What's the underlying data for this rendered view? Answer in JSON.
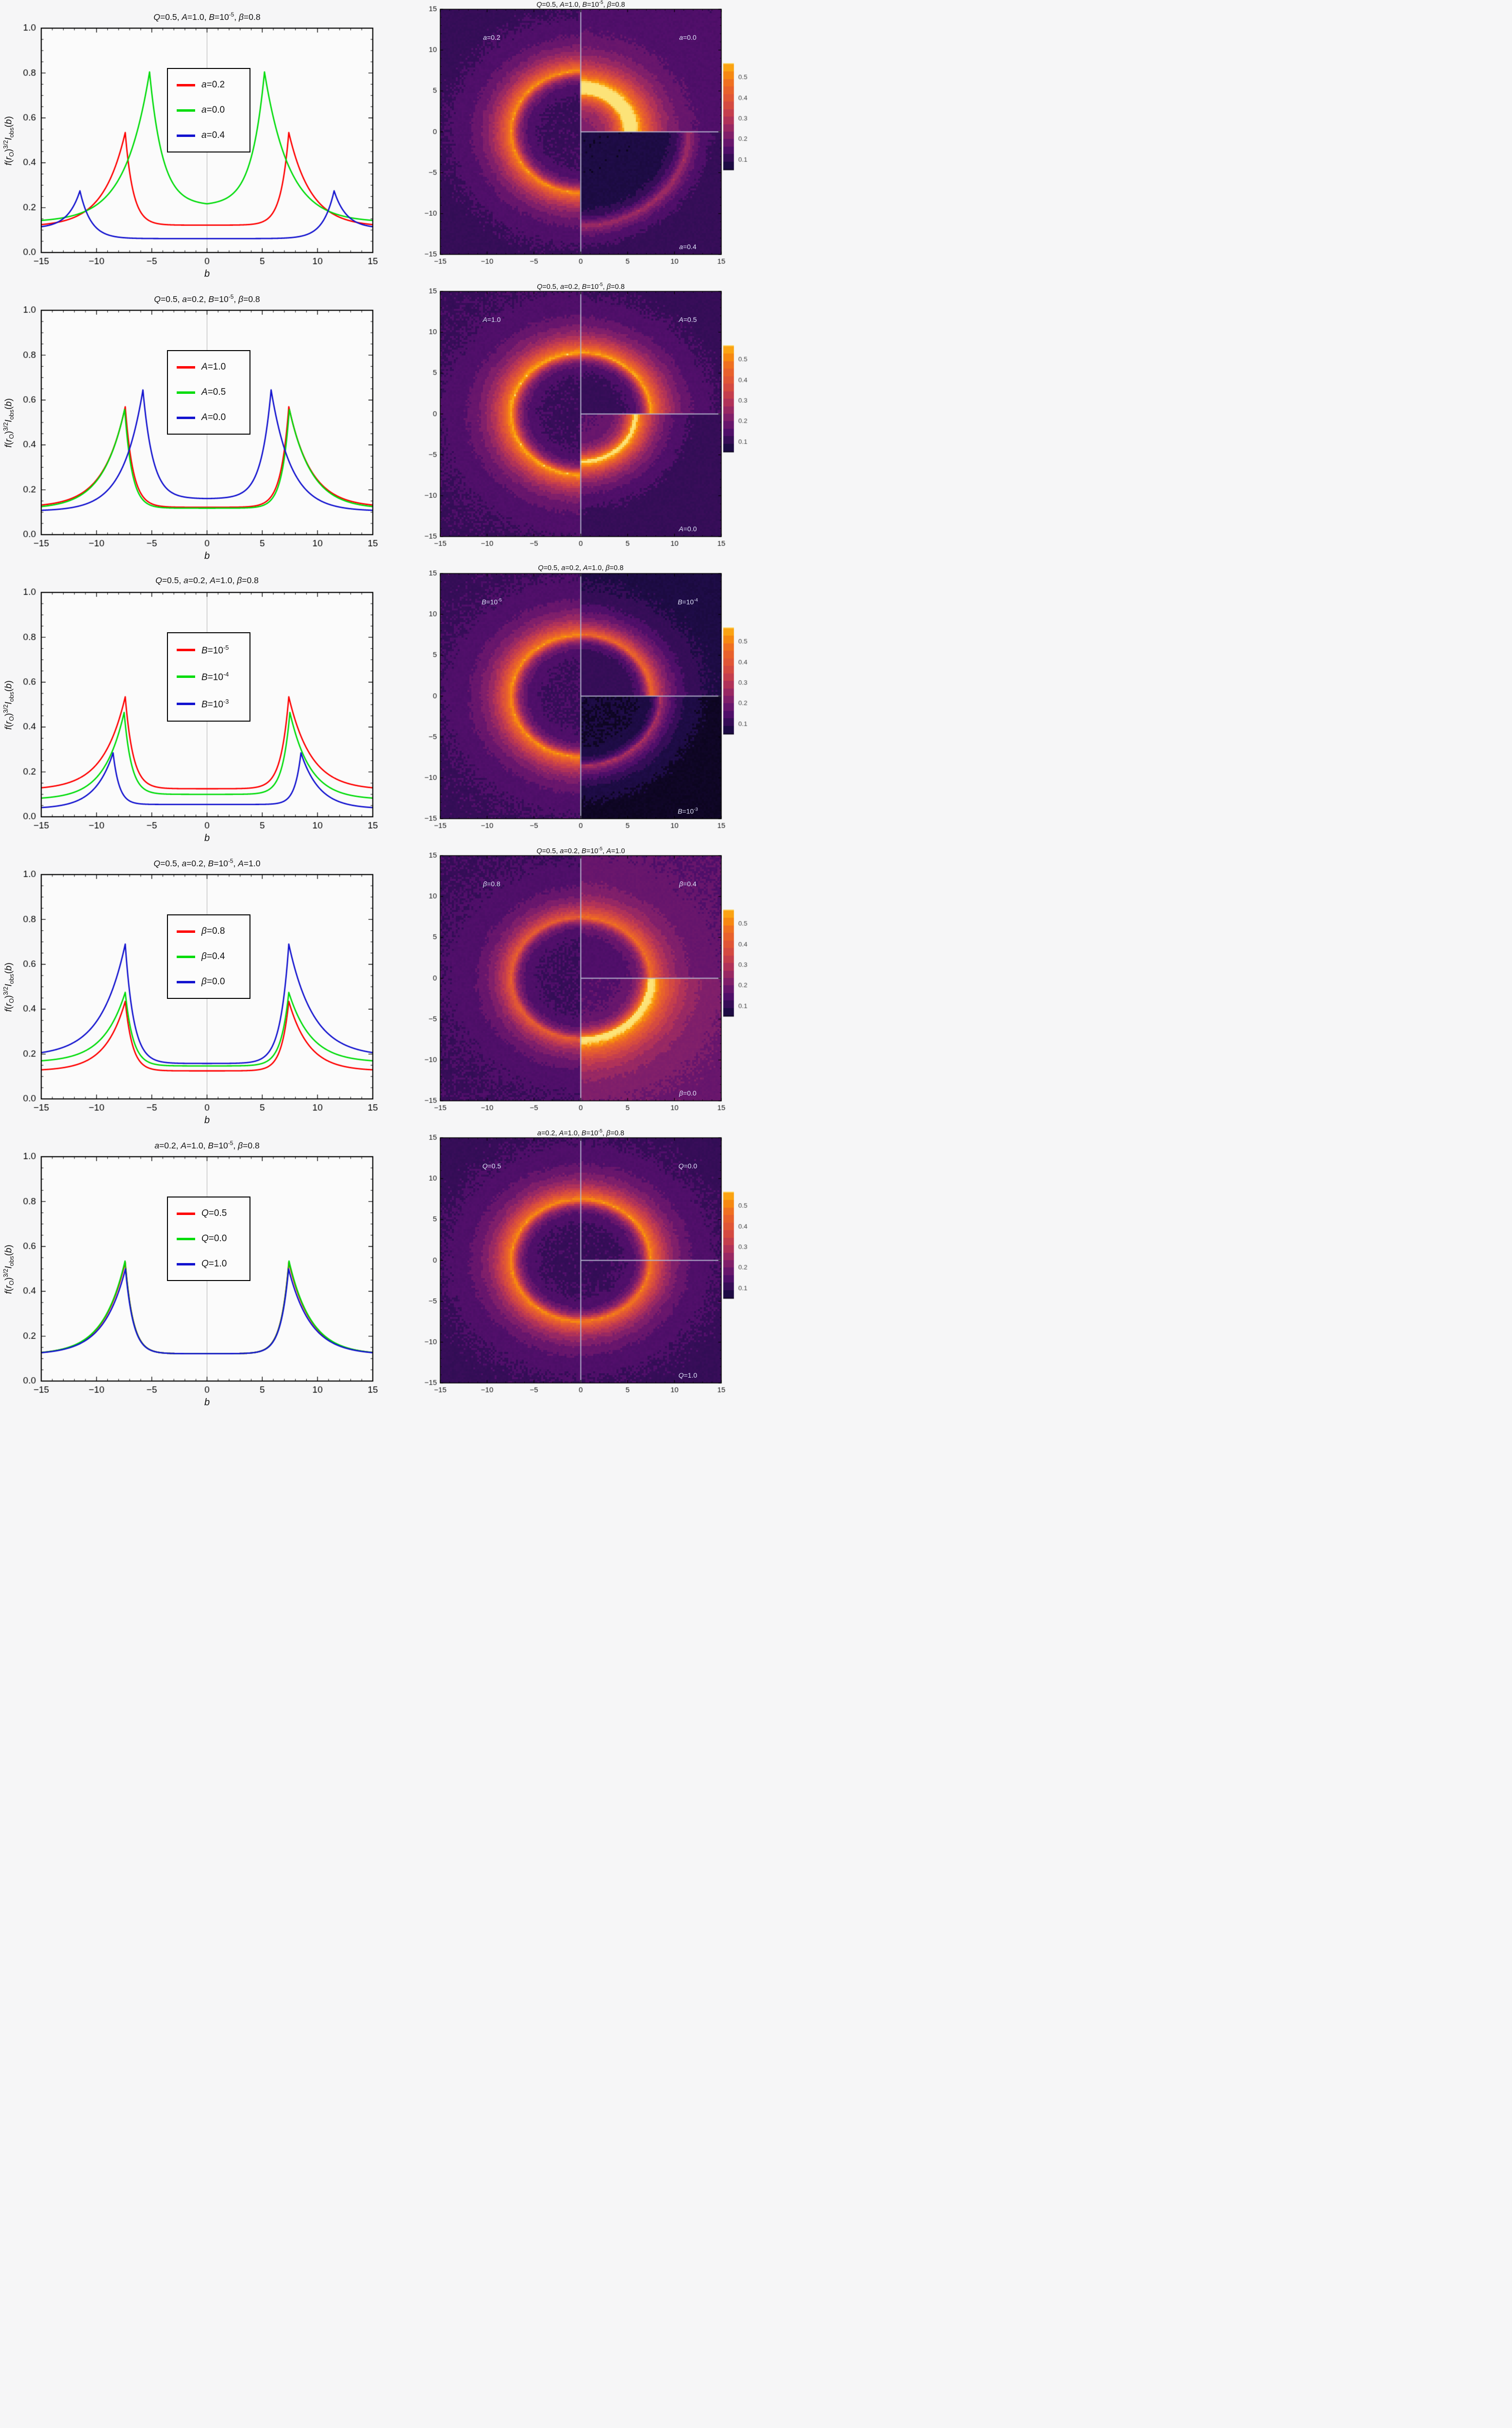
{
  "style": {
    "page_bg": "#f6f6f7",
    "plot_bg": "#fbfbfb",
    "frame_color": "#000000",
    "zero_gridline_color": "#b0b0b0",
    "divider_color": "#b6b6cf",
    "quadrant_label_color": "#dfe2fa",
    "colors": {
      "red": "#fe0000",
      "green": "#00dc0a",
      "blue": "#1313cf"
    },
    "colormap_name": "inferno-like (dark navy to amber)",
    "colormap_stops": [
      [
        0.0,
        "#000004"
      ],
      [
        0.125,
        "#1f0c48"
      ],
      [
        0.25,
        "#550f6d"
      ],
      [
        0.375,
        "#88226a"
      ],
      [
        0.5,
        "#bc3754"
      ],
      [
        0.625,
        "#dd513a"
      ],
      [
        0.75,
        "#ed6925"
      ],
      [
        0.875,
        "#fb9b06"
      ],
      [
        1.0,
        "#fcffa4"
      ]
    ]
  },
  "value_model": "v(r) = center + (peak-center)*exp(-ki*(peak_b - r)) for r <= peak_b ; v(r) = edge + (peak-edge)*exp(-ko*(r - peak_b)) for r > peak_b",
  "chart_data": [
    {
      "line": {
        "type": "line",
        "title": "Q=0.5, A=1.0, B=10^{-5}, β=0.8",
        "xlabel": "b",
        "ylabel": "f(r_{O})^{3/2}I_{obs}(b)",
        "xlim": [
          -15,
          15
        ],
        "ylim": [
          0,
          1
        ],
        "x_ticks": [
          -15,
          -10,
          -5,
          0,
          5,
          10,
          15
        ],
        "y_ticks": [
          0,
          0.2,
          0.4,
          0.6,
          0.8,
          1.0
        ],
        "legend_position": "upper center",
        "legend": [
          {
            "label": "a=0.2",
            "color": "red"
          },
          {
            "label": "a=0.0",
            "color": "green"
          },
          {
            "label": "a=0.4",
            "color": "blue"
          }
        ],
        "series": [
          {
            "name": "a=0.2",
            "color": "red",
            "peak_b": 7.4,
            "peak": 0.535,
            "center": 0.122,
            "edge": 0.115,
            "ki": 1.4,
            "ko": 0.5
          },
          {
            "name": "a=0.0",
            "color": "green",
            "peak_b": 5.2,
            "peak": 0.805,
            "center": 0.21,
            "edge": 0.135,
            "ki": 0.85,
            "ko": 0.45
          },
          {
            "name": "a=0.4",
            "color": "blue",
            "peak_b": 11.5,
            "peak": 0.275,
            "center": 0.062,
            "edge": 0.108,
            "ki": 1.0,
            "ko": 0.9
          }
        ]
      },
      "heatmap": {
        "type": "heatmap",
        "title": "Q=0.5, A=1.0, B=10^{-5}, β=0.8",
        "xlim": [
          -15,
          15
        ],
        "ylim": [
          -15,
          15
        ],
        "ticks": [
          -15,
          -10,
          -5,
          0,
          5,
          10,
          15
        ],
        "quadrants": [
          {
            "region": "left-half",
            "series_index": 0,
            "label": "a=0.2",
            "label_position": "top-left"
          },
          {
            "region": "top-right-quadrant",
            "series_index": 1,
            "label": "a=0.0",
            "label_position": "top-right"
          },
          {
            "region": "bottom-right-quadrant",
            "series_index": 2,
            "label": "a=0.4",
            "label_position": "bottom-right"
          }
        ],
        "colorbar": {
          "vmin": 0.05,
          "vmax": 0.57,
          "ticks": [
            0.1,
            0.2,
            0.3,
            0.4,
            0.5
          ]
        }
      }
    },
    {
      "line": {
        "type": "line",
        "title": "Q=0.5, a=0.2, B=10^{-5}, β=0.8",
        "xlabel": "b",
        "ylabel": "f(r_{O})^{3/2}I_{obs}(b)",
        "xlim": [
          -15,
          15
        ],
        "ylim": [
          0,
          1
        ],
        "x_ticks": [
          -15,
          -10,
          -5,
          0,
          5,
          10,
          15
        ],
        "y_ticks": [
          0,
          0.2,
          0.4,
          0.6,
          0.8,
          1.0
        ],
        "legend_position": "upper center",
        "legend": [
          {
            "label": "A=1.0",
            "color": "red"
          },
          {
            "label": "A=0.5",
            "color": "green"
          },
          {
            "label": "A=0.0",
            "color": "blue"
          }
        ],
        "series": [
          {
            "name": "A=1.0",
            "color": "red",
            "peak_b": 7.4,
            "peak": 0.57,
            "center": 0.122,
            "edge": 0.122,
            "ki": 1.4,
            "ko": 0.5
          },
          {
            "name": "A=0.5",
            "color": "green",
            "peak_b": 7.45,
            "peak": 0.56,
            "center": 0.118,
            "edge": 0.115,
            "ki": 1.5,
            "ko": 0.5
          },
          {
            "name": "A=0.0",
            "color": "blue",
            "peak_b": 5.8,
            "peak": 0.645,
            "center": 0.16,
            "edge": 0.105,
            "ki": 1.1,
            "ko": 0.55
          }
        ]
      },
      "heatmap": {
        "type": "heatmap",
        "title": "Q=0.5, a=0.2, B=10^{-5}, β=0.8",
        "xlim": [
          -15,
          15
        ],
        "ylim": [
          -15,
          15
        ],
        "ticks": [
          -15,
          -10,
          -5,
          0,
          5,
          10,
          15
        ],
        "quadrants": [
          {
            "region": "left-half",
            "series_index": 0,
            "label": "A=1.0",
            "label_position": "top-left"
          },
          {
            "region": "top-right-quadrant",
            "series_index": 1,
            "label": "A=0.5",
            "label_position": "top-right"
          },
          {
            "region": "bottom-right-quadrant",
            "series_index": 2,
            "label": "A=0.0",
            "label_position": "bottom-right"
          }
        ],
        "colorbar": {
          "vmin": 0.05,
          "vmax": 0.57,
          "ticks": [
            0.1,
            0.2,
            0.3,
            0.4,
            0.5
          ]
        }
      }
    },
    {
      "line": {
        "type": "line",
        "title": "Q=0.5, a=0.2, A=1.0, β=0.8",
        "xlabel": "b",
        "ylabel": "f(r_{O})^{3/2}I_{obs}(b)",
        "xlim": [
          -15,
          15
        ],
        "ylim": [
          0,
          1
        ],
        "x_ticks": [
          -15,
          -10,
          -5,
          0,
          5,
          10,
          15
        ],
        "y_ticks": [
          0,
          0.2,
          0.4,
          0.6,
          0.8,
          1.0
        ],
        "legend_position": "upper center",
        "legend": [
          {
            "label": "B=10^{-5}",
            "color": "red"
          },
          {
            "label": "B=10^{-4}",
            "color": "green"
          },
          {
            "label": "B=10^{-3}",
            "color": "blue"
          }
        ],
        "series": [
          {
            "name": "B=10^-5",
            "color": "red",
            "peak_b": 7.4,
            "peak": 0.535,
            "center": 0.125,
            "edge": 0.12,
            "ki": 1.4,
            "ko": 0.5
          },
          {
            "name": "B=10^-4",
            "color": "green",
            "peak_b": 7.5,
            "peak": 0.465,
            "center": 0.1,
            "edge": 0.077,
            "ki": 1.5,
            "ko": 0.55
          },
          {
            "name": "B=10^-3",
            "color": "blue",
            "peak_b": 8.5,
            "peak": 0.285,
            "center": 0.055,
            "edge": 0.036,
            "ki": 1.8,
            "ko": 0.6
          }
        ]
      },
      "heatmap": {
        "type": "heatmap",
        "title": "Q=0.5, a=0.2, A=1.0, β=0.8",
        "xlim": [
          -15,
          15
        ],
        "ylim": [
          -15,
          15
        ],
        "ticks": [
          -15,
          -10,
          -5,
          0,
          5,
          10,
          15
        ],
        "quadrants": [
          {
            "region": "left-half",
            "series_index": 0,
            "label": "B=10^{-5}",
            "label_position": "top-left"
          },
          {
            "region": "top-right-quadrant",
            "series_index": 1,
            "label": "B=10^{-4}",
            "label_position": "top-right"
          },
          {
            "region": "bottom-right-quadrant",
            "series_index": 2,
            "label": "B=10^{-3}",
            "label_position": "bottom-right"
          }
        ],
        "colorbar": {
          "vmin": 0.05,
          "vmax": 0.57,
          "ticks": [
            0.1,
            0.2,
            0.3,
            0.4,
            0.5
          ]
        }
      }
    },
    {
      "line": {
        "type": "line",
        "title": "Q=0.5, a=0.2, B=10^{-5}, A=1.0",
        "xlabel": "b",
        "ylabel": "f(r_{O})^{3/2}I_{obs}(b)",
        "xlim": [
          -15,
          15
        ],
        "ylim": [
          0,
          1
        ],
        "x_ticks": [
          -15,
          -10,
          -5,
          0,
          5,
          10,
          15
        ],
        "y_ticks": [
          0,
          0.2,
          0.4,
          0.6,
          0.8,
          1.0
        ],
        "legend_position": "upper center",
        "legend": [
          {
            "label": "β=0.8",
            "color": "red"
          },
          {
            "label": "β=0.4",
            "color": "green"
          },
          {
            "label": "β=0.0",
            "color": "blue"
          }
        ],
        "series": [
          {
            "name": "β=0.8",
            "color": "red",
            "peak_b": 7.4,
            "peak": 0.435,
            "center": 0.125,
            "edge": 0.125,
            "ki": 1.5,
            "ko": 0.55
          },
          {
            "name": "β=0.4",
            "color": "green",
            "peak_b": 7.4,
            "peak": 0.475,
            "center": 0.147,
            "edge": 0.163,
            "ki": 1.4,
            "ko": 0.5
          },
          {
            "name": "β=0.0",
            "color": "blue",
            "peak_b": 7.4,
            "peak": 0.69,
            "center": 0.158,
            "edge": 0.19,
            "ki": 1.3,
            "ko": 0.45
          }
        ]
      },
      "heatmap": {
        "type": "heatmap",
        "title": "Q=0.5, a=0.2, B=10^{-5}, A=1.0",
        "xlim": [
          -15,
          15
        ],
        "ylim": [
          -15,
          15
        ],
        "ticks": [
          -15,
          -10,
          -5,
          0,
          5,
          10,
          15
        ],
        "quadrants": [
          {
            "region": "left-half",
            "series_index": 0,
            "label": "β=0.8",
            "label_position": "top-left"
          },
          {
            "region": "top-right-quadrant",
            "series_index": 1,
            "label": "β=0.4",
            "label_position": "top-right"
          },
          {
            "region": "bottom-right-quadrant",
            "series_index": 2,
            "label": "β=0.0",
            "label_position": "bottom-right"
          }
        ],
        "colorbar": {
          "vmin": 0.05,
          "vmax": 0.57,
          "ticks": [
            0.1,
            0.2,
            0.3,
            0.4,
            0.5
          ]
        }
      }
    },
    {
      "line": {
        "type": "line",
        "title": "a=0.2, A=1.0, B=10^{-5}, β=0.8",
        "xlabel": "b",
        "ylabel": "f(r_{O})^{3/2}I_{obs}(b)",
        "xlim": [
          -15,
          15
        ],
        "ylim": [
          0,
          1
        ],
        "x_ticks": [
          -15,
          -10,
          -5,
          0,
          5,
          10,
          15
        ],
        "y_ticks": [
          0,
          0.2,
          0.4,
          0.6,
          0.8,
          1.0
        ],
        "legend_position": "upper center",
        "legend": [
          {
            "label": "Q=0.5",
            "color": "red"
          },
          {
            "label": "Q=0.0",
            "color": "green"
          },
          {
            "label": "Q=1.0",
            "color": "blue"
          }
        ],
        "series": [
          {
            "name": "Q=0.5",
            "color": "red",
            "peak_b": 7.4,
            "peak": 0.53,
            "center": 0.122,
            "edge": 0.118,
            "ki": 1.4,
            "ko": 0.5
          },
          {
            "name": "Q=0.0",
            "color": "green",
            "peak_b": 7.42,
            "peak": 0.535,
            "center": 0.122,
            "edge": 0.118,
            "ki": 1.4,
            "ko": 0.5
          },
          {
            "name": "Q=1.0",
            "color": "blue",
            "peak_b": 7.38,
            "peak": 0.5,
            "center": 0.122,
            "edge": 0.118,
            "ki": 1.4,
            "ko": 0.5
          }
        ]
      },
      "heatmap": {
        "type": "heatmap",
        "title": "a=0.2, A=1.0, B=10^{-5}, β=0.8",
        "xlim": [
          -15,
          15
        ],
        "ylim": [
          -15,
          15
        ],
        "ticks": [
          -15,
          -10,
          -5,
          0,
          5,
          10,
          15
        ],
        "quadrants": [
          {
            "region": "left-half",
            "series_index": 0,
            "label": "Q=0.5",
            "label_position": "top-left"
          },
          {
            "region": "top-right-quadrant",
            "series_index": 1,
            "label": "Q=0.0",
            "label_position": "top-right"
          },
          {
            "region": "bottom-right-quadrant",
            "series_index": 2,
            "label": "Q=1.0",
            "label_position": "bottom-right"
          }
        ],
        "colorbar": {
          "vmin": 0.05,
          "vmax": 0.57,
          "ticks": [
            0.1,
            0.2,
            0.3,
            0.4,
            0.5
          ]
        }
      }
    }
  ]
}
